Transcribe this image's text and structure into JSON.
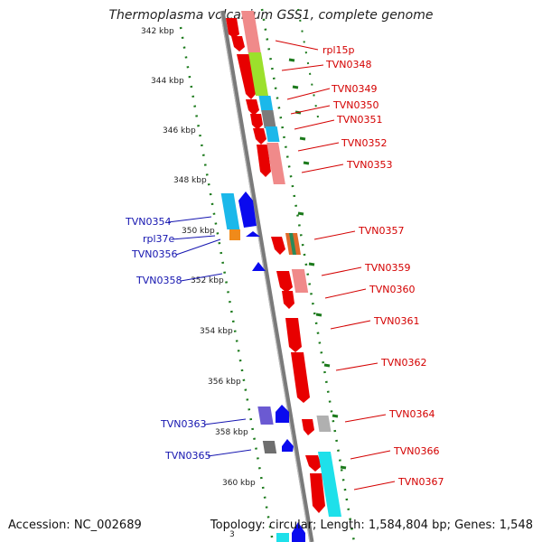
{
  "title": "Thermoplasma volcanium GSS1, complete genome",
  "footer": {
    "accession": "Accession: NC_002689",
    "topology": "Topology: circular; Length: 1,584,804 bp; Genes: 1,548"
  },
  "colors": {
    "backbone": "#8c8c8c",
    "tick": "#1c7a1c",
    "forward_label": "#d40000",
    "reverse_label": "#1515b0"
  },
  "ticks": [
    "342 kbp",
    "344 kbp",
    "346 kbp",
    "348 kbp",
    "350 kbp",
    "352 kbp",
    "354 kbp",
    "356 kbp",
    "358 kbp",
    "360 kbp"
  ],
  "forward_labels": [
    "rpl15p",
    "TVN0348",
    "TVN0349",
    "TVN0350",
    "TVN0351",
    "TVN0352",
    "TVN0353",
    "TVN0357",
    "TVN0359",
    "TVN0360",
    "TVN0361",
    "TVN0362",
    "TVN0364",
    "TVN0366",
    "TVN0367"
  ],
  "reverse_labels": [
    "TVN0354",
    "rpl37e",
    "TVN0356",
    "TVN0358",
    "TVN0363",
    "TVN0365"
  ]
}
